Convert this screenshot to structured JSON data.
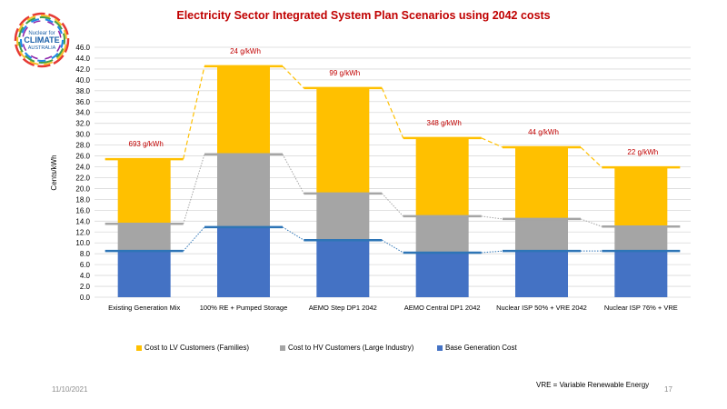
{
  "slide": {
    "date": "11/10/2021",
    "page_number": "17",
    "footnote": "VRE = Variable Renewable  Energy",
    "logo": {
      "line1": "Nuclear for",
      "line2": "CLIMATE",
      "line3": "AUSTRALIA"
    }
  },
  "chart_data": {
    "type": "bar",
    "stacked": true,
    "title": "Electricity  Sector Integrated System Plan  Scenarios   using  2042 costs",
    "xlabel": "",
    "ylabel": "Cents/kWh",
    "ylim": [
      0,
      46
    ],
    "ytick_step": 2,
    "yticks": [
      "0.0",
      "2.0",
      "4.0",
      "6.0",
      "8.0",
      "10.0",
      "12.0",
      "14.0",
      "16.0",
      "18.0",
      "20.0",
      "22.0",
      "24.0",
      "26.0",
      "28.0",
      "30.0",
      "32.0",
      "34.0",
      "36.0",
      "38.0",
      "40.0",
      "42.0",
      "44.0",
      "46.0"
    ],
    "grid": true,
    "legend_position": "bottom",
    "categories": [
      "Existing Generation Mix",
      "100% RE + Pumped Storage",
      "AEMO Step DP1 2042",
      "AEMO Central DP1 2042",
      "Nuclear ISP 50% + VRE 2042",
      "Nuclear ISP 76% + VRE"
    ],
    "series": [
      {
        "name": "Base Generation Cost",
        "color": "#4472c4",
        "line_color": "#2e75b6",
        "cumulative": [
          8.5,
          12.9,
          10.5,
          8.2,
          8.5,
          8.5
        ]
      },
      {
        "name": "Cost to HV Customers (Large Industry)",
        "color": "#a5a5a5",
        "line_color": "#a5a5a5",
        "cumulative": [
          13.5,
          26.3,
          19.1,
          14.9,
          14.4,
          13.0
        ]
      },
      {
        "name": "Cost to LV Customers (Families)",
        "color": "#ffc000",
        "line_color": "#ffc000",
        "cumulative": [
          25.4,
          42.5,
          38.5,
          29.3,
          27.6,
          23.9
        ]
      }
    ],
    "legend_order": [
      2,
      1,
      0
    ],
    "annotations": [
      "693 g/kWh",
      "24 g/kWh",
      "99 g/kWh",
      "348 g/kWh",
      "44 g/kWh",
      "22 g/kWh"
    ],
    "annotation_color": "#c00000"
  }
}
